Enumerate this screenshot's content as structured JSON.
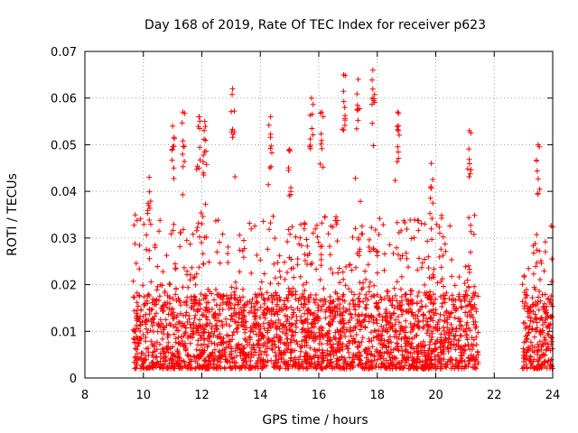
{
  "chart_data": {
    "type": "scatter",
    "title": "Day 168 of 2019, Rate Of TEC Index for receiver p623",
    "xlabel": "GPS time / hours",
    "ylabel": "ROTI / TECUs",
    "xlim": [
      8,
      24
    ],
    "ylim": [
      0,
      0.07
    ],
    "grid": true,
    "marker": "+",
    "marker_color": "#ff0000",
    "x_ticks": [
      "8",
      "10",
      "12",
      "14",
      "16",
      "18",
      "20",
      "22",
      "24"
    ],
    "y_ticks": [
      "0",
      "0.01",
      "0.02",
      "0.03",
      "0.04",
      "0.05",
      "0.06",
      "0.07"
    ],
    "series": [
      {
        "name": "ROTI",
        "data_segments": [
          {
            "x_start": 9.65,
            "x_end": 21.45
          },
          {
            "x_start": 22.95,
            "x_end": 24.0
          }
        ],
        "peaks": [
          {
            "x": 10.2,
            "y": 0.043
          },
          {
            "x": 11.0,
            "y": 0.054
          },
          {
            "x": 11.35,
            "y": 0.057
          },
          {
            "x": 11.9,
            "y": 0.056
          },
          {
            "x": 12.1,
            "y": 0.055
          },
          {
            "x": 13.05,
            "y": 0.062
          },
          {
            "x": 14.35,
            "y": 0.056
          },
          {
            "x": 15.0,
            "y": 0.049
          },
          {
            "x": 15.75,
            "y": 0.06
          },
          {
            "x": 16.1,
            "y": 0.057
          },
          {
            "x": 16.85,
            "y": 0.065
          },
          {
            "x": 17.35,
            "y": 0.064
          },
          {
            "x": 17.85,
            "y": 0.066
          },
          {
            "x": 18.7,
            "y": 0.057
          },
          {
            "x": 19.85,
            "y": 0.046
          },
          {
            "x": 21.15,
            "y": 0.053
          },
          {
            "x": 23.5,
            "y": 0.05
          }
        ],
        "typical_range": [
          0.002,
          0.035
        ]
      }
    ]
  }
}
